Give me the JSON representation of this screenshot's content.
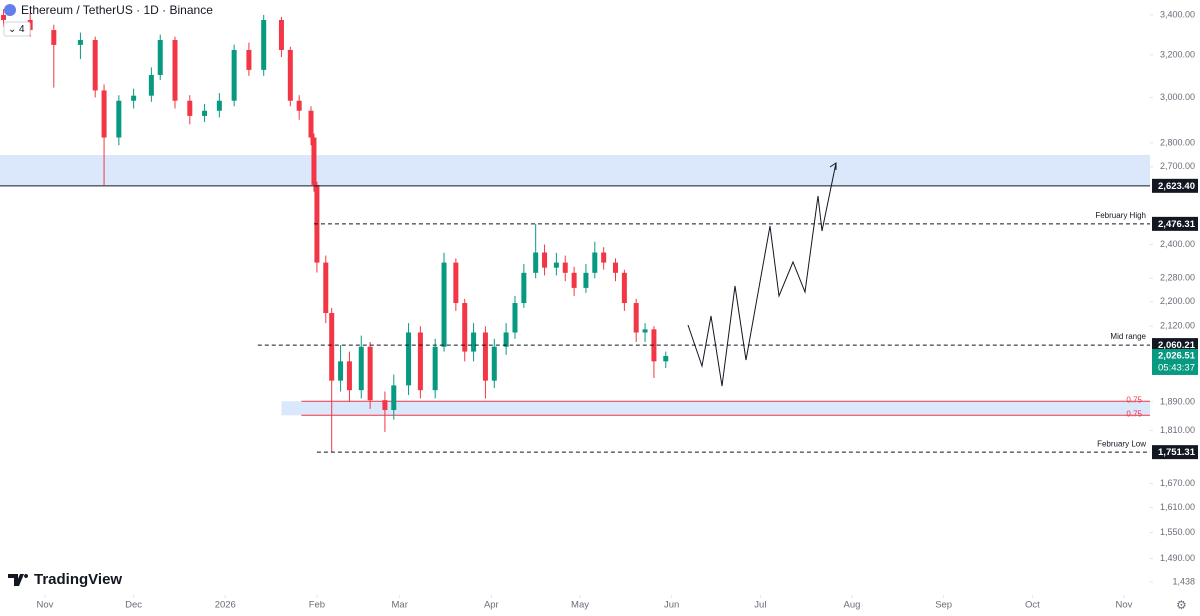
{
  "chart_data": {
    "type": "candlestick",
    "title": "Ethereum / TetherUS · 1D · Binance",
    "indicator_count": "4",
    "brand": "TradingView",
    "up_color": "#089981",
    "down_color": "#f23645",
    "log_scale": true,
    "x": [
      -14,
      -5,
      3,
      12,
      17,
      20,
      25,
      30,
      36,
      39,
      44,
      49,
      54,
      59,
      64,
      69,
      74,
      80,
      83,
      86,
      90,
      91,
      92,
      95,
      97,
      100,
      103,
      107,
      110,
      115,
      118,
      123,
      127,
      132,
      135,
      139,
      142,
      145,
      149,
      152,
      156,
      159,
      162,
      166,
      169,
      173,
      176,
      179,
      183,
      186,
      189,
      193,
      196,
      200,
      203,
      206,
      210
    ],
    "open": [
      3400,
      3374,
      3323,
      3249,
      3273,
      3032,
      2823,
      2985,
      3008,
      3104,
      3273,
      2985,
      2917,
      2940,
      2985,
      3224,
      3128,
      3374,
      3224,
      2985,
      2940,
      2823,
      2627,
      2335,
      2163,
      1952,
      2010,
      1924,
      2055,
      1895,
      1867,
      1938,
      2100,
      1924,
      2055,
      2335,
      2196,
      2040,
      2100,
      1952,
      2055,
      2100,
      2196,
      2299,
      2371,
      2317,
      2335,
      2299,
      2247,
      2299,
      2371,
      2335,
      2299,
      2196,
      2100,
      2110,
      2010
    ],
    "high": [
      3430,
      3410,
      3350,
      3310,
      3290,
      3060,
      3010,
      3040,
      3140,
      3300,
      3290,
      3010,
      2970,
      3020,
      3250,
      3260,
      3400,
      3390,
      3240,
      3010,
      2960,
      2840,
      2640,
      2360,
      2180,
      2060,
      2040,
      2090,
      2070,
      1920,
      1970,
      2130,
      2120,
      2080,
      2370,
      2350,
      2210,
      2130,
      2120,
      2080,
      2130,
      2220,
      2330,
      2476.31,
      2400,
      2370,
      2360,
      2320,
      2330,
      2410,
      2390,
      2350,
      2310,
      2210,
      2130,
      2120,
      2040
    ],
    "low": [
      3340,
      3290,
      3045,
      3180,
      3000,
      2627,
      2790,
      2950,
      2980,
      3080,
      2950,
      2880,
      2890,
      2910,
      2960,
      3100,
      3100,
      3190,
      2960,
      2900,
      2790,
      2600,
      2300,
      2130,
      1751.31,
      1920,
      1890,
      1900,
      1870,
      1806,
      1840,
      1910,
      1900,
      1900,
      2040,
      2170,
      2010,
      2010,
      1900,
      1930,
      2030,
      2080,
      2180,
      2280,
      2290,
      2290,
      2270,
      2220,
      2230,
      2280,
      2310,
      2270,
      2170,
      2070,
      2070,
      1960,
      1990
    ],
    "close": [
      3374,
      3323,
      3249,
      3273,
      3032,
      2823,
      2985,
      3008,
      3104,
      3273,
      2985,
      2917,
      2940,
      2985,
      3224,
      3128,
      3374,
      3224,
      2985,
      2940,
      2823,
      2627,
      2335,
      2163,
      1952,
      2010,
      1924,
      2055,
      1895,
      1867,
      1938,
      2100,
      1924,
      2055,
      2335,
      2196,
      2040,
      2100,
      1952,
      2055,
      2100,
      2196,
      2299,
      2371,
      2317,
      2335,
      2299,
      2247,
      2299,
      2371,
      2335,
      2299,
      2196,
      2100,
      2110,
      2010,
      2026.51
    ],
    "xlim": [
      -15.2,
      373.8
    ],
    "xticks": [
      {
        "value": 0,
        "label": "Nov"
      },
      {
        "value": 30,
        "label": "Dec"
      },
      {
        "value": 61,
        "label": "2026"
      },
      {
        "value": 92,
        "label": "Feb"
      },
      {
        "value": 120,
        "label": "Mar"
      },
      {
        "value": 151,
        "label": "Apr"
      },
      {
        "value": 181,
        "label": "May"
      },
      {
        "value": 212,
        "label": "Jun"
      },
      {
        "value": 242,
        "label": "Jul"
      },
      {
        "value": 273,
        "label": "Aug"
      },
      {
        "value": 304,
        "label": "Sep"
      },
      {
        "value": 334,
        "label": "Oct"
      },
      {
        "value": 365,
        "label": "Nov"
      }
    ],
    "ylim": [
      1410,
      3478
    ],
    "yticks": [
      {
        "value": 3400,
        "label": "3,400.00"
      },
      {
        "value": 3200,
        "label": "3,200.00"
      },
      {
        "value": 3000,
        "label": "3,000.00"
      },
      {
        "value": 2800,
        "label": "2,800.00"
      },
      {
        "value": 2700,
        "label": "2,700.00"
      },
      {
        "value": 2400,
        "label": "2,400.00"
      },
      {
        "value": 2280,
        "label": "2,280.00"
      },
      {
        "value": 2200,
        "label": "2,200.00"
      },
      {
        "value": 2120,
        "label": "2,120.00"
      },
      {
        "value": 1890,
        "label": "1,890.00"
      },
      {
        "value": 1810,
        "label": "1,810.00"
      },
      {
        "value": 1670,
        "label": "1,670.00"
      },
      {
        "value": 1610,
        "label": "1,610.00"
      },
      {
        "value": 1550,
        "label": "1,550.00"
      },
      {
        "value": 1490,
        "label": "1,490.00"
      },
      {
        "value": 1438,
        "label": "1,438"
      }
    ],
    "levels": [
      {
        "value": 2623.4,
        "value_label": "2,623.40",
        "style": "solid"
      },
      {
        "name": "February High",
        "value": 2476.31,
        "value_label": "2,476.31",
        "style": "dashed",
        "start": 91
      },
      {
        "name": "Mid range",
        "value": 2060.21,
        "value_label": "2,060.21",
        "style": "dashed",
        "start": 72
      },
      {
        "name": "February Low",
        "value": 1751.31,
        "value_label": "1,751.31",
        "style": "dashed",
        "start": 92
      }
    ],
    "zones": [
      {
        "low": 2623.4,
        "high": 2749,
        "color": "#dbe8fb"
      },
      {
        "low": 1852,
        "high": 1892,
        "color": "#dbe8fb",
        "start": 80,
        "line_color": "#f23645",
        "edge_labels": [
          "0.75",
          "0.75"
        ]
      }
    ],
    "last_price": {
      "value": 2026.51,
      "value_label": "2,026.51",
      "countdown": "05:43:37",
      "color": "#089981"
    }
  }
}
